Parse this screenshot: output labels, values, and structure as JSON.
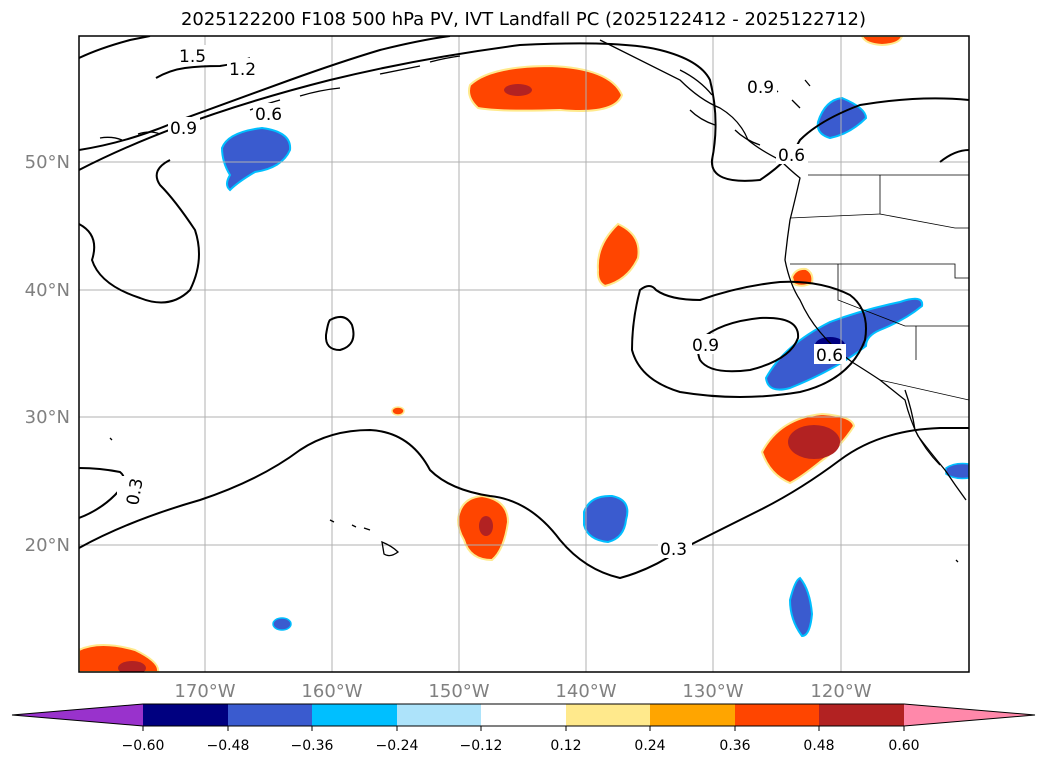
{
  "title": "2025122200 F108 500 hPa PV, IVT Landfall PC (2025122412 - 2025122712)",
  "map": {
    "lat_ticks": [
      "50°N",
      "40°N",
      "30°N",
      "20°N"
    ],
    "lon_ticks": [
      "170°W",
      "160°W",
      "150°W",
      "140°W",
      "130°W",
      "120°W"
    ],
    "contour_labels": [
      "1.5",
      "1.2",
      "0.9",
      "0.6",
      "0.9",
      "0.6",
      "0.9",
      "0.6",
      "0.3",
      "0.3"
    ]
  },
  "colorbar": {
    "ticks": [
      "−0.60",
      "−0.48",
      "−0.36",
      "−0.24",
      "−0.12",
      "0.12",
      "0.24",
      "0.36",
      "0.48",
      "0.60"
    ],
    "colors": [
      "#9932CC",
      "#000080",
      "#3A5BCF",
      "#00BFFF",
      "#ADE3FA",
      "#FFFFFF",
      "#FFE98C",
      "#FFA500",
      "#FF4500",
      "#B22222",
      "#FF88AA"
    ]
  }
}
